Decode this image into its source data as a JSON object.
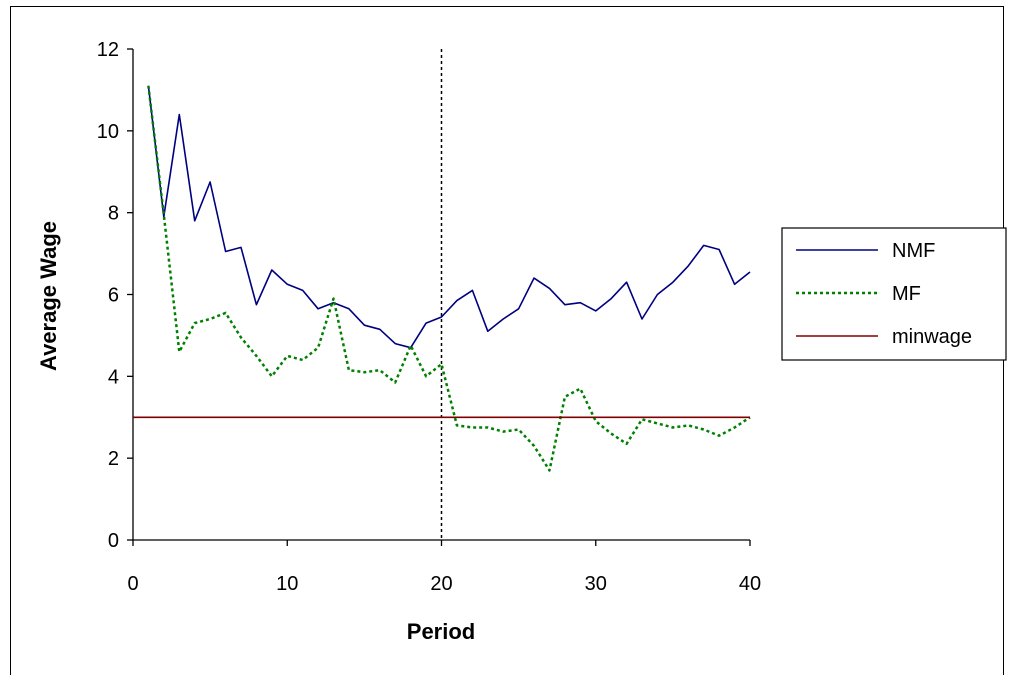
{
  "chart_data": {
    "type": "line",
    "xlabel": "Period",
    "ylabel": "Average Wage",
    "xlim": [
      0,
      40
    ],
    "ylim": [
      0,
      12
    ],
    "xticks": [
      0,
      10,
      20,
      30,
      40
    ],
    "yticks": [
      0,
      2,
      4,
      6,
      8,
      10,
      12
    ],
    "grid": false,
    "legend_position": "right",
    "vertical_reference_line": {
      "x": 20,
      "style": "dotted",
      "color": "#000000"
    },
    "series": [
      {
        "name": "NMF",
        "color": "#000080",
        "style": "solid",
        "x": [
          1,
          2,
          3,
          4,
          5,
          6,
          7,
          8,
          9,
          10,
          11,
          12,
          13,
          14,
          15,
          16,
          17,
          18,
          19,
          20,
          21,
          22,
          23,
          24,
          25,
          26,
          27,
          28,
          29,
          30,
          31,
          32,
          33,
          34,
          35,
          36,
          37,
          38,
          39,
          40
        ],
        "y": [
          11.1,
          7.9,
          10.4,
          7.8,
          8.75,
          7.05,
          7.15,
          5.75,
          6.6,
          6.25,
          6.1,
          5.65,
          5.8,
          5.65,
          5.25,
          5.15,
          4.8,
          4.7,
          5.3,
          5.45,
          5.85,
          6.1,
          5.1,
          5.4,
          5.65,
          6.4,
          6.15,
          5.75,
          5.8,
          5.6,
          5.9,
          6.3,
          5.4,
          6.0,
          6.3,
          6.7,
          7.2,
          7.1,
          6.25,
          6.55
        ]
      },
      {
        "name": "MF",
        "color": "#008000",
        "style": "dotted",
        "x": [
          1,
          2,
          3,
          4,
          5,
          6,
          7,
          8,
          9,
          10,
          11,
          12,
          13,
          14,
          15,
          16,
          17,
          18,
          19,
          20,
          21,
          22,
          23,
          24,
          25,
          26,
          27,
          28,
          29,
          30,
          31,
          32,
          33,
          34,
          35,
          36,
          37,
          38,
          39,
          40
        ],
        "y": [
          11.1,
          7.95,
          4.6,
          5.3,
          5.4,
          5.55,
          4.95,
          4.5,
          4.0,
          4.5,
          4.4,
          4.7,
          5.9,
          4.15,
          4.1,
          4.15,
          3.85,
          4.75,
          4.0,
          4.3,
          2.8,
          2.75,
          2.75,
          2.65,
          2.7,
          2.3,
          1.7,
          3.5,
          3.7,
          2.9,
          2.6,
          2.35,
          2.95,
          2.85,
          2.75,
          2.8,
          2.7,
          2.55,
          2.75,
          3.0
        ]
      },
      {
        "name": "minwage",
        "color": "#800000",
        "style": "solid",
        "x": [
          0,
          40
        ],
        "y": [
          3,
          3
        ]
      }
    ]
  }
}
